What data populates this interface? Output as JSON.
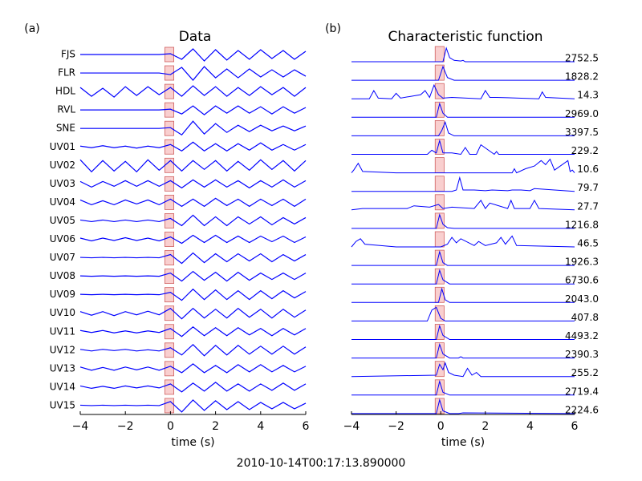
{
  "figure": {
    "footer": "2010-10-14T00:17:13.890000"
  },
  "chart_data": [
    {
      "type": "line",
      "panel_label": "(a)",
      "title": "Data",
      "x_label": "time (s)",
      "xlim": [
        -4,
        6
      ],
      "xticks": [
        {
          "value": -4,
          "label": "−4"
        },
        {
          "value": -2,
          "label": "−2"
        },
        0,
        2,
        4,
        6
      ],
      "pick_window": [
        -0.25,
        0.15
      ],
      "color": "#0000ff",
      "x": [
        -4,
        -3.5,
        -3,
        -2.5,
        -2,
        -1.5,
        -1,
        -0.5,
        0,
        0.5,
        1,
        1.5,
        2,
        2.5,
        3,
        3.5,
        4,
        4.5,
        5,
        5.5,
        6
      ],
      "series": [
        {
          "name": "FJS",
          "values": [
            0,
            0,
            0,
            0,
            0,
            0,
            0,
            0,
            0.1,
            -0.6,
            0.7,
            -0.8,
            0.6,
            -0.7,
            0.5,
            -0.6,
            0.6,
            -0.5,
            0.5,
            -0.6,
            0.4
          ]
        },
        {
          "name": "FLR",
          "values": [
            0,
            0,
            0,
            0,
            0,
            0,
            0,
            0,
            -0.2,
            0.7,
            -0.9,
            0.8,
            -0.6,
            0.5,
            -0.6,
            0.5,
            -0.5,
            0.4,
            -0.5,
            0.4,
            -0.4
          ]
        },
        {
          "name": "HDL",
          "values": [
            0.5,
            -0.6,
            0.4,
            -0.7,
            0.6,
            -0.5,
            0.6,
            -0.4,
            0.5,
            -0.6,
            0.7,
            -0.5,
            0.6,
            -0.6,
            0.5,
            -0.5,
            0.6,
            -0.4,
            0.5,
            -0.6,
            0.5
          ]
        },
        {
          "name": "RVL",
          "values": [
            0,
            0,
            0,
            0,
            0,
            0,
            0,
            0,
            0.1,
            -0.5,
            0.5,
            -0.6,
            0.5,
            -0.4,
            0.5,
            -0.4,
            0.4,
            -0.5,
            0.4,
            -0.4,
            0.3
          ]
        },
        {
          "name": "SNE",
          "values": [
            0,
            0,
            0,
            0,
            0,
            0,
            0,
            0,
            0.1,
            -0.8,
            0.9,
            -0.7,
            0.6,
            -0.5,
            0.4,
            -0.4,
            0.4,
            -0.3,
            0.3,
            -0.3,
            0.3
          ]
        },
        {
          "name": "UV01",
          "values": [
            0.1,
            -0.1,
            0.15,
            -0.1,
            0.1,
            -0.15,
            0.1,
            -0.1,
            0.3,
            -0.5,
            0.6,
            -0.5,
            0.4,
            -0.5,
            0.4,
            -0.4,
            0.5,
            -0.4,
            0.3,
            -0.4,
            0.3
          ]
        },
        {
          "name": "UV02",
          "values": [
            0.7,
            -0.8,
            0.6,
            -0.7,
            0.5,
            -0.8,
            0.7,
            -0.6,
            0.6,
            -0.7,
            0.6,
            -0.5,
            0.6,
            -0.7,
            0.5,
            -0.6,
            0.7,
            -0.5,
            0.6,
            -0.7,
            0.6
          ]
        },
        {
          "name": "UV03",
          "values": [
            0.3,
            -0.4,
            0.3,
            -0.3,
            0.4,
            -0.3,
            0.4,
            -0.3,
            0.4,
            -0.5,
            0.5,
            -0.4,
            0.5,
            -0.4,
            0.4,
            -0.5,
            0.4,
            -0.4,
            0.5,
            -0.4,
            0.4
          ]
        },
        {
          "name": "UV04",
          "values": [
            0.3,
            -0.3,
            0.2,
            -0.3,
            0.3,
            -0.2,
            0.3,
            -0.3,
            0.4,
            -0.5,
            0.4,
            -0.5,
            0.5,
            -0.4,
            0.4,
            -0.5,
            0.4,
            -0.4,
            0.4,
            -0.5,
            0.4
          ]
        },
        {
          "name": "UV05",
          "values": [
            0.1,
            -0.1,
            0.1,
            -0.1,
            0.1,
            -0.1,
            0.1,
            -0.1,
            0.3,
            -0.6,
            0.7,
            -0.6,
            0.5,
            -0.6,
            0.5,
            -0.4,
            0.5,
            -0.5,
            0.4,
            -0.4,
            0.4
          ]
        },
        {
          "name": "UV06",
          "values": [
            0.15,
            -0.2,
            0.15,
            -0.15,
            0.2,
            -0.15,
            0.15,
            -0.2,
            0.3,
            -0.5,
            0.5,
            -0.4,
            0.5,
            -0.4,
            0.4,
            -0.4,
            0.4,
            -0.3,
            0.4,
            -0.4,
            0.3
          ]
        },
        {
          "name": "UV07",
          "values": [
            0.05,
            0,
            0.05,
            0,
            0.05,
            0,
            0.05,
            0,
            0.4,
            -0.7,
            0.6,
            -0.6,
            0.5,
            -0.5,
            0.5,
            -0.4,
            0.5,
            -0.5,
            0.4,
            -0.4,
            0.4
          ]
        },
        {
          "name": "UV08",
          "values": [
            0.05,
            0,
            0.05,
            0,
            0.05,
            0,
            0.05,
            0,
            0.4,
            -0.6,
            0.6,
            -0.5,
            0.5,
            -0.6,
            0.5,
            -0.5,
            0.4,
            -0.4,
            0.4,
            -0.4,
            0.4
          ]
        },
        {
          "name": "UV09",
          "values": [
            0.05,
            0,
            0.05,
            0,
            0.05,
            0,
            0.05,
            0,
            0.3,
            -0.7,
            0.7,
            -0.6,
            0.6,
            -0.6,
            0.5,
            -0.6,
            0.5,
            -0.5,
            0.5,
            -0.4,
            0.4
          ]
        },
        {
          "name": "UV10",
          "values": [
            0.2,
            -0.25,
            0.2,
            -0.3,
            0.2,
            -0.2,
            0.25,
            -0.2,
            0.6,
            -0.7,
            0.6,
            -0.6,
            0.5,
            -0.6,
            0.6,
            -0.5,
            0.5,
            -0.6,
            0.5,
            -0.5,
            0.4
          ]
        },
        {
          "name": "UV11",
          "values": [
            0.15,
            -0.1,
            0.15,
            -0.15,
            0.1,
            -0.15,
            0.1,
            -0.1,
            0.4,
            -0.6,
            0.6,
            -0.5,
            0.5,
            -0.5,
            0.5,
            -0.4,
            0.4,
            -0.5,
            0.4,
            -0.4,
            0.4
          ]
        },
        {
          "name": "UV12",
          "values": [
            0.1,
            -0.1,
            0.1,
            -0.05,
            0.1,
            -0.1,
            0.05,
            -0.1,
            0.3,
            -0.6,
            0.7,
            -0.7,
            0.6,
            -0.6,
            0.6,
            -0.5,
            0.5,
            -0.5,
            0.5,
            -0.5,
            0.4
          ]
        },
        {
          "name": "UV13",
          "values": [
            0.2,
            -0.2,
            0.15,
            -0.2,
            0.2,
            -0.15,
            0.2,
            -0.2,
            0.3,
            -0.5,
            0.6,
            -0.5,
            0.4,
            -0.5,
            0.5,
            -0.4,
            0.5,
            -0.4,
            0.4,
            -0.4,
            0.3
          ]
        },
        {
          "name": "UV14",
          "values": [
            0.15,
            -0.15,
            0.1,
            -0.15,
            0.15,
            -0.1,
            0.15,
            -0.1,
            0.4,
            -0.6,
            0.5,
            -0.5,
            0.6,
            -0.5,
            0.4,
            -0.5,
            0.4,
            -0.4,
            0.5,
            -0.4,
            0.4
          ]
        },
        {
          "name": "UV15",
          "values": [
            0.05,
            0,
            0.05,
            0,
            0.05,
            0,
            0.05,
            0,
            0.5,
            -0.8,
            0.7,
            -0.6,
            0.6,
            -0.5,
            0.5,
            -0.5,
            0.4,
            -0.4,
            0.4,
            -0.4,
            0.3
          ]
        }
      ]
    },
    {
      "type": "line",
      "panel_label": "(b)",
      "title": "Characteristic function",
      "x_label": "time (s)",
      "xlim": [
        -4,
        6
      ],
      "xticks": [
        {
          "value": -4,
          "label": "−4"
        },
        {
          "value": -2,
          "label": "−2"
        },
        0,
        2,
        4,
        6
      ],
      "pick_window": [
        -0.25,
        0.15
      ],
      "color": "#0000ff",
      "series": [
        {
          "peak_label": "2752.5",
          "x": [
            -4,
            0.1,
            0.25,
            0.4,
            0.6,
            0.9,
            1.0,
            1.1,
            6
          ],
          "values": [
            0,
            0,
            1,
            0.3,
            0.1,
            0.05,
            0.1,
            0,
            0
          ]
        },
        {
          "peak_label": "1828.2",
          "x": [
            -4,
            -0.1,
            0.1,
            0.3,
            0.6,
            6
          ],
          "values": [
            0,
            0,
            1,
            0.2,
            0,
            0
          ]
        },
        {
          "peak_label": "14.3",
          "x": [
            -4,
            -3.2,
            -3,
            -2.8,
            -2.2,
            -2,
            -1.8,
            -0.9,
            -0.7,
            -0.5,
            -0.3,
            -0.1,
            0.1,
            0.5,
            1.8,
            2,
            2.2,
            2.5,
            4.4,
            4.55,
            4.7,
            6
          ],
          "values": [
            0,
            0,
            0.6,
            0.05,
            0,
            0.4,
            0.05,
            0.3,
            0.6,
            0.1,
            1,
            0.3,
            0.05,
            0.1,
            0,
            0.6,
            0.1,
            0.1,
            0,
            0.5,
            0.1,
            0
          ]
        },
        {
          "peak_label": "2969.0",
          "x": [
            -4,
            -0.2,
            -0.05,
            0.1,
            0.3,
            6
          ],
          "values": [
            0,
            0,
            1,
            0.3,
            0,
            0
          ]
        },
        {
          "peak_label": "3397.5",
          "x": [
            -4,
            -0.1,
            0.05,
            0.2,
            0.35,
            0.6,
            6
          ],
          "values": [
            0,
            0,
            0.4,
            1,
            0.2,
            0,
            0
          ]
        },
        {
          "peak_label": "229.2",
          "x": [
            -4,
            -0.6,
            -0.4,
            -0.2,
            -0.05,
            0.1,
            0.5,
            0.9,
            1.1,
            1.3,
            1.6,
            1.8,
            2.4,
            2.5,
            2.6,
            6
          ],
          "values": [
            0,
            0,
            0.3,
            0.1,
            1,
            0.1,
            0.1,
            0,
            0.5,
            0,
            0,
            0.7,
            0,
            0.2,
            0,
            0
          ]
        },
        {
          "peak_label": "10.6",
          "x": [
            -4,
            -3.9,
            -3.7,
            -3.5,
            -2,
            0.5,
            2,
            3.2,
            3.3,
            3.4,
            3.8,
            4.2,
            4.5,
            4.7,
            4.9,
            5.1,
            5.7,
            5.8,
            5.9,
            6
          ],
          "values": [
            0,
            0.2,
            0.7,
            0.1,
            0,
            0,
            0,
            0,
            0.3,
            0,
            0.3,
            0.5,
            0.9,
            0.6,
            1,
            0.2,
            0.9,
            0.1,
            0.2,
            0
          ]
        },
        {
          "peak_label": "79.7",
          "x": [
            -4,
            0.5,
            0.7,
            0.85,
            1.0,
            1.5,
            2,
            2.3,
            3,
            3.2,
            3.6,
            4.0,
            4.2,
            6
          ],
          "values": [
            0,
            0,
            0.1,
            1,
            0.1,
            0.1,
            0.05,
            0.1,
            0.05,
            0.1,
            0.1,
            0.05,
            0.2,
            0
          ]
        },
        {
          "peak_label": "27.7",
          "x": [
            -4,
            -3.5,
            -2.5,
            -1.5,
            -1.2,
            -0.5,
            -0.1,
            0.1,
            0.5,
            1.5,
            1.8,
            2.0,
            2.2,
            3.0,
            3.15,
            3.3,
            4.0,
            4.2,
            4.4,
            6
          ],
          "values": [
            0,
            0.1,
            0.1,
            0.1,
            0.3,
            0.2,
            0.4,
            0.1,
            0.2,
            0.1,
            0.7,
            0.1,
            0.5,
            0.1,
            0.7,
            0.1,
            0.1,
            0.7,
            0.1,
            0
          ]
        },
        {
          "peak_label": "1216.8",
          "x": [
            -4,
            -0.2,
            -0.05,
            0.1,
            0.3,
            0.6,
            6
          ],
          "values": [
            0,
            0,
            1,
            0.3,
            0.05,
            0,
            0
          ]
        },
        {
          "peak_label": "46.5",
          "x": [
            -4,
            -3.8,
            -3.6,
            -3.4,
            -2,
            0,
            0.3,
            0.5,
            0.7,
            0.9,
            1.5,
            1.7,
            2,
            2.5,
            2.7,
            2.9,
            3.2,
            3.4,
            6
          ],
          "values": [
            0,
            0.4,
            0.6,
            0.2,
            0,
            0,
            0.2,
            0.7,
            0.3,
            0.6,
            0.1,
            0.4,
            0.1,
            0.3,
            0.7,
            0.2,
            0.8,
            0.1,
            0
          ]
        },
        {
          "peak_label": "1926.3",
          "x": [
            -4,
            -0.2,
            -0.05,
            0.1,
            0.3,
            6
          ],
          "values": [
            0,
            0,
            1,
            0.2,
            0,
            0
          ]
        },
        {
          "peak_label": "6730.6",
          "x": [
            -4,
            -0.2,
            -0.05,
            0.1,
            0.4,
            6
          ],
          "values": [
            0,
            0,
            1,
            0.3,
            0,
            0
          ]
        },
        {
          "peak_label": "2043.0",
          "x": [
            -4,
            -0.1,
            0.05,
            0.2,
            0.4,
            6
          ],
          "values": [
            0,
            0,
            1,
            0.2,
            0,
            0
          ]
        },
        {
          "peak_label": "407.8",
          "x": [
            -4,
            -0.6,
            -0.4,
            -0.2,
            0,
            0.2,
            6
          ],
          "values": [
            0,
            0,
            0.8,
            1,
            0.2,
            0,
            0
          ]
        },
        {
          "peak_label": "4493.2",
          "x": [
            -4,
            -0.2,
            -0.05,
            0.1,
            0.4,
            6
          ],
          "values": [
            0,
            0,
            1,
            0.3,
            0,
            0
          ]
        },
        {
          "peak_label": "2390.3",
          "x": [
            -4,
            -0.2,
            -0.05,
            0.1,
            0.4,
            0.8,
            0.9,
            1.0,
            6
          ],
          "values": [
            0,
            0,
            1,
            0.3,
            0,
            0,
            0.1,
            0,
            0
          ]
        },
        {
          "peak_label": "255.2",
          "x": [
            -4,
            -0.2,
            -0.05,
            0.1,
            0.2,
            0.35,
            0.6,
            1.0,
            1.2,
            1.4,
            1.6,
            1.8,
            6
          ],
          "values": [
            0,
            0.1,
            0.9,
            0.5,
            1,
            0.3,
            0.1,
            0,
            0.6,
            0.1,
            0.3,
            0,
            0
          ]
        },
        {
          "peak_label": "2719.4",
          "x": [
            -4,
            -0.2,
            -0.05,
            0.1,
            0.4,
            6
          ],
          "values": [
            0,
            0,
            1,
            0.2,
            0,
            0
          ]
        },
        {
          "peak_label": "2224.6",
          "x": [
            -4,
            -0.2,
            -0.05,
            0.1,
            0.4,
            0.8,
            1.0,
            6
          ],
          "values": [
            0,
            0,
            1,
            0.2,
            0,
            0,
            0.05,
            0
          ]
        }
      ]
    }
  ]
}
